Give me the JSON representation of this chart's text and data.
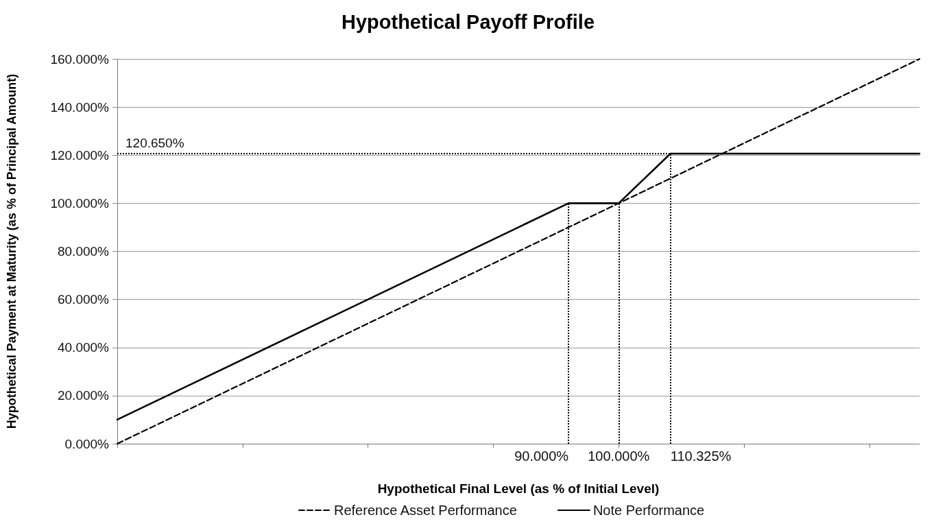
{
  "chart_data": {
    "type": "line",
    "title": "Hypothetical Payoff Profile",
    "xlabel": "Hypothetical Final Level (as % of Initial Level)",
    "ylabel": "Hypothetical Payment at Maturity (as % of Principal Amount)",
    "series": [
      {
        "name": "Reference Asset Performance",
        "color": "#000000",
        "line_style": "dashed",
        "x": [
          0,
          160
        ],
        "values": [
          0,
          160
        ]
      },
      {
        "name": "Note Performance",
        "color": "#000000",
        "line_style": "solid",
        "x": [
          0,
          90,
          100,
          110.325,
          160
        ],
        "values": [
          10,
          100,
          100,
          120.65,
          120.65
        ]
      }
    ],
    "xlim": [
      0,
      160
    ],
    "xticks": [
      {
        "value": 0,
        "label": null
      },
      {
        "value": 25,
        "label": null
      },
      {
        "value": 50,
        "label": null
      },
      {
        "value": 75,
        "label": null
      },
      {
        "value": 100,
        "label": null
      },
      {
        "value": 125,
        "label": null
      },
      {
        "value": 150,
        "label": null
      }
    ],
    "ylim": [
      0,
      160
    ],
    "yticks": [
      {
        "value": 0,
        "label": "0.000%"
      },
      {
        "value": 20,
        "label": "20.000%"
      },
      {
        "value": 40,
        "label": "40.000%"
      },
      {
        "value": 60,
        "label": "60.000%"
      },
      {
        "value": 80,
        "label": "80.000%"
      },
      {
        "value": 100,
        "label": "100.000%"
      },
      {
        "value": 120,
        "label": "120.000%"
      },
      {
        "value": 140,
        "label": "140.000%"
      },
      {
        "value": 160,
        "label": "160.000%"
      }
    ],
    "ref_lines": [
      {
        "axis": "y",
        "value": 120.65,
        "label": "120.650%",
        "color": "#000000",
        "line_style": "dotted"
      },
      {
        "axis": "x",
        "value": 90,
        "label": "90.000%",
        "color": "#000000",
        "line_style": "dotted"
      },
      {
        "axis": "x",
        "value": 100,
        "label": "100.000%",
        "color": "#000000",
        "line_style": "dotted"
      },
      {
        "axis": "x",
        "value": 110.325,
        "label": "110.325%",
        "color": "#000000",
        "line_style": "dotted"
      }
    ],
    "tick_labels": "y",
    "grid": "y",
    "legend": "bottom",
    "marker": "none"
  }
}
